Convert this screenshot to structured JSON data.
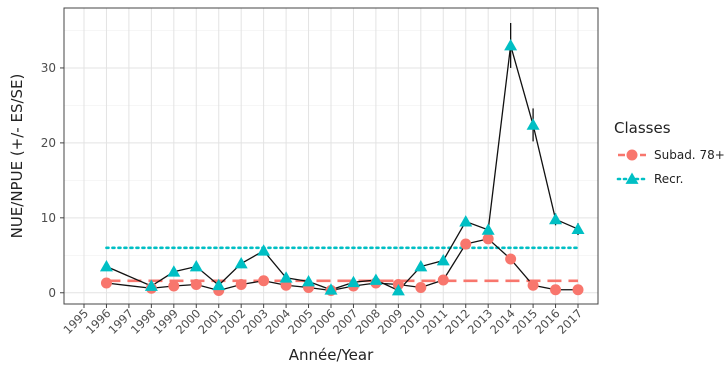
{
  "chart_data": {
    "type": "line",
    "xlabel": "Année/Year",
    "ylabel": "NUE/NPUE (+/- ES/SE)",
    "xlim": [
      1995,
      2017
    ],
    "ylim": [
      -1.5,
      38
    ],
    "x_ticks": [
      "1995",
      "1996",
      "1997",
      "1998",
      "1999",
      "2000",
      "2001",
      "2002",
      "2003",
      "2004",
      "2005",
      "2006",
      "2007",
      "2008",
      "2009",
      "2010",
      "2011",
      "2012",
      "2013",
      "2014",
      "2015",
      "2016",
      "2017"
    ],
    "y_ticks": [
      0,
      10,
      20,
      30
    ],
    "grid": true,
    "legend": {
      "title": "Classes",
      "position": "right"
    },
    "series": [
      {
        "name": "Subad. 78+",
        "color": "#F8766D",
        "marker": "circle",
        "x": [
          1996,
          1998,
          1999,
          2000,
          2001,
          2002,
          2003,
          2004,
          2005,
          2006,
          2007,
          2008,
          2009,
          2010,
          2011,
          2012,
          2013,
          2014,
          2015,
          2016,
          2017
        ],
        "values": [
          1.3,
          0.6,
          0.9,
          1.1,
          0.3,
          1.1,
          1.6,
          1.0,
          0.7,
          0.3,
          0.9,
          1.3,
          1.1,
          0.7,
          1.7,
          6.5,
          7.2,
          4.5,
          1.0,
          0.4,
          0.4
        ],
        "mean": 1.6,
        "mean_style": "dashed"
      },
      {
        "name": "Recr.",
        "color": "#00BFC4",
        "marker": "triangle",
        "x": [
          1996,
          1998,
          1999,
          2000,
          2001,
          2002,
          2003,
          2004,
          2005,
          2006,
          2007,
          2008,
          2009,
          2010,
          2011,
          2012,
          2013,
          2014,
          2015,
          2016,
          2017
        ],
        "values": [
          3.5,
          0.9,
          2.8,
          3.5,
          1.0,
          3.9,
          5.6,
          2.0,
          1.5,
          0.4,
          1.4,
          1.7,
          0.3,
          3.5,
          4.3,
          9.5,
          8.4,
          33.0,
          22.4,
          9.8,
          8.5
        ],
        "errors": [
          0.2,
          0.3,
          0.4,
          0.4,
          0.2,
          0.4,
          0.5,
          0.3,
          0.2,
          0.1,
          0.2,
          0.2,
          0.1,
          0.4,
          0.4,
          0.5,
          0.5,
          3.0,
          2.2,
          0.8,
          0.8
        ],
        "mean": 6.0,
        "mean_style": "dotted"
      }
    ]
  }
}
